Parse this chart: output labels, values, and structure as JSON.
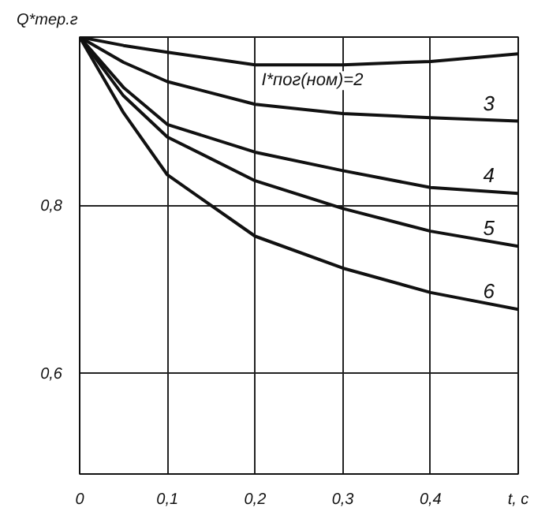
{
  "chart_data": {
    "type": "line",
    "ylabel": "Q*тер.г",
    "xlabel": "t, c",
    "x": [
      0,
      0.05,
      0.1,
      0.2,
      0.3,
      0.4,
      0.5
    ],
    "series": [
      {
        "name": "I*пог(ном)=2",
        "color": "#111111",
        "values": [
          1.0,
          0.99,
          0.982,
          0.967,
          0.967,
          0.971,
          0.98
        ]
      },
      {
        "name": "3",
        "color": "#111111",
        "values": [
          1.0,
          0.97,
          0.947,
          0.92,
          0.909,
          0.904,
          0.9
        ]
      },
      {
        "name": "4",
        "color": "#111111",
        "values": [
          1.0,
          0.94,
          0.896,
          0.863,
          0.841,
          0.821,
          0.814
        ]
      },
      {
        "name": "5",
        "color": "#111111",
        "values": [
          1.0,
          0.93,
          0.881,
          0.829,
          0.796,
          0.769,
          0.751
        ]
      },
      {
        "name": "6",
        "color": "#111111",
        "values": [
          1.0,
          0.91,
          0.836,
          0.763,
          0.725,
          0.696,
          0.676
        ]
      }
    ],
    "xlim": [
      0,
      0.5
    ],
    "ylim": [
      0.48,
      1.0
    ],
    "xticks": [
      0,
      {
        "value": 0.1,
        "label": "0,1"
      },
      {
        "value": 0.2,
        "label": "0,2"
      },
      {
        "value": 0.3,
        "label": "0,3"
      },
      {
        "value": 0.4,
        "label": "0,4"
      }
    ],
    "yticks": [
      {
        "value": 0.6,
        "label": "0,6"
      },
      {
        "value": 0.8,
        "label": "0,8"
      }
    ],
    "grid": true,
    "line_style": "solid",
    "marker": "none"
  }
}
